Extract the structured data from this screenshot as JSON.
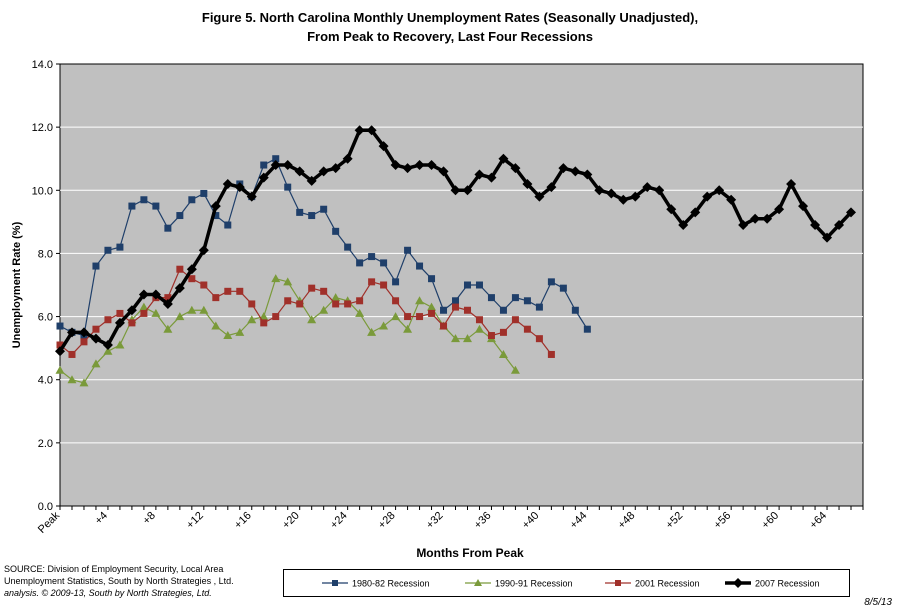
{
  "chart_data": {
    "type": "line",
    "title": "Figure 5. North Carolina Monthly Unemployment Rates (Seasonally Unadjusted),",
    "subtitle": "From Peak to Recovery,  Last Four Recessions",
    "xlabel": "Months From Peak",
    "ylabel": "Unemployment Rate (%)",
    "ylim": [
      0,
      14
    ],
    "yticks": [
      "0.0",
      "2.0",
      "4.0",
      "6.0",
      "8.0",
      "10.0",
      "12.0",
      "14.0"
    ],
    "xlim": [
      0,
      67
    ],
    "xtick_labels": [
      {
        "x": 0,
        "label": "Peak"
      },
      {
        "x": 4,
        "label": "+4"
      },
      {
        "x": 8,
        "label": "+8"
      },
      {
        "x": 12,
        "label": "+12"
      },
      {
        "x": 16,
        "label": "+16"
      },
      {
        "x": 20,
        "label": "+20"
      },
      {
        "x": 24,
        "label": "+24"
      },
      {
        "x": 28,
        "label": "+28"
      },
      {
        "x": 32,
        "label": "+32"
      },
      {
        "x": 36,
        "label": "+36"
      },
      {
        "x": 40,
        "label": "+40"
      },
      {
        "x": 44,
        "label": "+44"
      },
      {
        "x": 48,
        "label": "+48"
      },
      {
        "x": 52,
        "label": "+52"
      },
      {
        "x": 56,
        "label": "+56"
      },
      {
        "x": 60,
        "label": "+60"
      },
      {
        "x": 64,
        "label": "+64"
      }
    ],
    "grid": "horizontal",
    "plot_background": "#c0c0c0",
    "legend_position": "bottom",
    "series": [
      {
        "name": "1980-82 Recession",
        "color": "#1f3f6a",
        "marker": "square",
        "values": [
          5.7,
          5.5,
          5.4,
          7.6,
          8.1,
          8.2,
          9.5,
          9.7,
          9.5,
          8.8,
          9.2,
          9.7,
          9.9,
          9.2,
          8.9,
          10.2,
          9.8,
          10.8,
          11.0,
          10.1,
          9.3,
          9.2,
          9.4,
          8.7,
          8.2,
          7.7,
          7.9,
          7.7,
          7.1,
          8.1,
          7.6,
          7.2,
          6.2,
          6.5,
          7.0,
          7.0,
          6.6,
          6.2,
          6.6,
          6.5,
          6.3,
          7.1,
          6.9,
          6.2,
          5.6
        ]
      },
      {
        "name": "1990-91 Recession",
        "color": "#7a9a3a",
        "marker": "triangle",
        "values": [
          4.3,
          4.0,
          3.9,
          4.5,
          4.9,
          5.1,
          5.9,
          6.3,
          6.1,
          5.6,
          6.0,
          6.2,
          6.2,
          5.7,
          5.4,
          5.5,
          5.9,
          6.0,
          7.2,
          7.1,
          6.5,
          5.9,
          6.2,
          6.6,
          6.5,
          6.1,
          5.5,
          5.7,
          6.0,
          5.6,
          6.5,
          6.3,
          5.7,
          5.3,
          5.3,
          5.6,
          5.3,
          4.8,
          4.3
        ]
      },
      {
        "name": "2001 Recession",
        "color": "#a0302a",
        "marker": "square",
        "values": [
          5.1,
          4.8,
          5.2,
          5.6,
          5.9,
          6.1,
          5.8,
          6.1,
          6.6,
          6.6,
          7.5,
          7.2,
          7.0,
          6.6,
          6.8,
          6.8,
          6.4,
          5.8,
          6.0,
          6.5,
          6.4,
          6.9,
          6.8,
          6.4,
          6.4,
          6.5,
          7.1,
          7.0,
          6.5,
          6.0,
          6.0,
          6.1,
          5.7,
          6.3,
          6.2,
          5.9,
          5.4,
          5.5,
          5.9,
          5.6,
          5.3,
          4.8
        ]
      },
      {
        "name": "2007 Recession",
        "color": "#000000",
        "marker": "diamond",
        "values": [
          4.9,
          5.5,
          5.5,
          5.3,
          5.1,
          5.8,
          6.2,
          6.7,
          6.7,
          6.4,
          6.9,
          7.5,
          8.1,
          9.5,
          10.2,
          10.1,
          9.8,
          10.4,
          10.8,
          10.8,
          10.6,
          10.3,
          10.6,
          10.7,
          11.0,
          11.9,
          11.9,
          11.4,
          10.8,
          10.7,
          10.8,
          10.8,
          10.6,
          10.0,
          10.0,
          10.5,
          10.4,
          11.0,
          10.7,
          10.2,
          9.8,
          10.1,
          10.7,
          10.6,
          10.5,
          10.0,
          9.9,
          9.7,
          9.8,
          10.1,
          10.0,
          9.4,
          8.9,
          9.3,
          9.8,
          10.0,
          9.7,
          8.9,
          9.1,
          9.1,
          9.4,
          10.2,
          9.5,
          8.9,
          8.5,
          8.9,
          9.3
        ]
      }
    ]
  },
  "source": {
    "line1": "SOURCE:  Division of Employment Security, Local Area",
    "line2": "Unemployment Statistics, South by North Strategies , Ltd.",
    "line3": "analysis. © 2009-13, South by North Strategies, Ltd."
  },
  "date_stamp": "8/5/13"
}
